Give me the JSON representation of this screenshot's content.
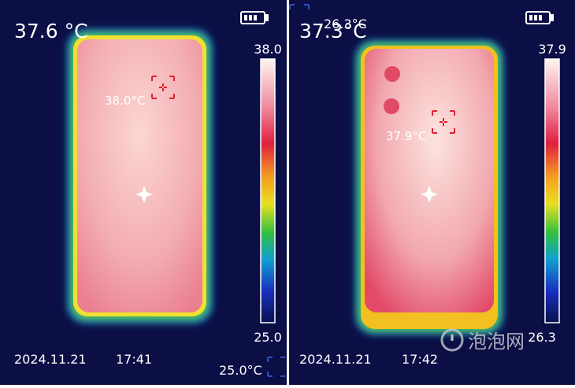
{
  "panels": [
    {
      "center_temp": "37.6 °C",
      "max_spot": "38.0°C",
      "scale_max": "38.0",
      "scale_min": "25.0",
      "date": "2024.11.21",
      "time": "17:41",
      "min_spot": "25.0°C"
    },
    {
      "center_temp": "37.3°C",
      "max_spot": "37.9°C",
      "scale_max": "37.9",
      "scale_min": "26.3",
      "date": "2024.11.21",
      "time": "17:42",
      "min_spot": "26.3°C"
    }
  ],
  "watermark": "泡泡网"
}
